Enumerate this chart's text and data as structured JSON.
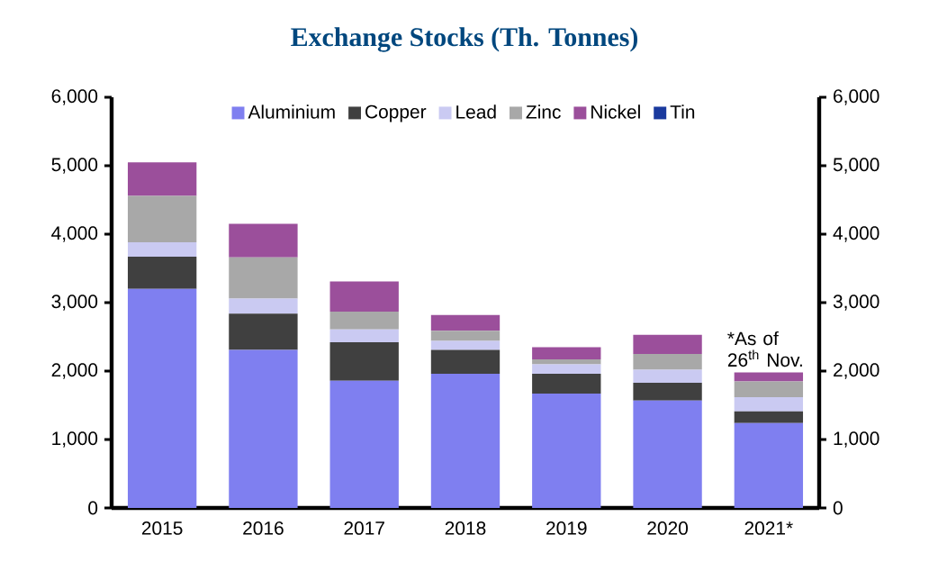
{
  "chart_data": {
    "type": "bar",
    "stacked": true,
    "title": "Exchange Stocks (Th. Tonnes)",
    "categories": [
      "2015",
      "2016",
      "2017",
      "2018",
      "2019",
      "2020",
      "2021*"
    ],
    "series": [
      {
        "name": "Aluminium",
        "color": "#7f7ff0",
        "values": [
          3200,
          2310,
          1860,
          1960,
          1670,
          1570,
          1240
        ]
      },
      {
        "name": "Copper",
        "color": "#404040",
        "values": [
          470,
          530,
          560,
          350,
          290,
          260,
          170
        ]
      },
      {
        "name": "Lead",
        "color": "#cacaf2",
        "values": [
          210,
          220,
          190,
          130,
          140,
          190,
          210
        ]
      },
      {
        "name": "Zinc",
        "color": "#a8a8a8",
        "values": [
          680,
          600,
          260,
          150,
          70,
          230,
          230
        ]
      },
      {
        "name": "Nickel",
        "color": "#9b4f9b",
        "values": [
          490,
          490,
          440,
          230,
          180,
          280,
          130
        ]
      },
      {
        "name": "Tin",
        "color": "#1a3a9e",
        "values": [
          0,
          0,
          0,
          0,
          0,
          0,
          0
        ]
      }
    ],
    "ylim": [
      0,
      6000
    ],
    "yticks": [
      0,
      {
        "value": 1000,
        "label": "1,000"
      },
      {
        "value": 2000,
        "label": "2,000"
      },
      {
        "value": 3000,
        "label": "3,000"
      },
      {
        "value": 4000,
        "label": "4,000"
      },
      {
        "value": 5000,
        "label": "5,000"
      },
      {
        "value": 6000,
        "label": "6,000"
      }
    ],
    "y2lim": [
      0,
      6000
    ],
    "y2ticks": [
      0,
      {
        "value": 1000,
        "label": "1,000"
      },
      {
        "value": 2000,
        "label": "2,000"
      },
      {
        "value": 3000,
        "label": "3,000"
      },
      {
        "value": 4000,
        "label": "4,000"
      },
      {
        "value": 5000,
        "label": "5,000"
      },
      {
        "value": 6000,
        "label": "6,000"
      }
    ],
    "legend": "top",
    "annotations": [
      {
        "text": "*As of 26$^{th}$ Nov.",
        "x": "2021*",
        "y": 1980
      }
    ]
  }
}
